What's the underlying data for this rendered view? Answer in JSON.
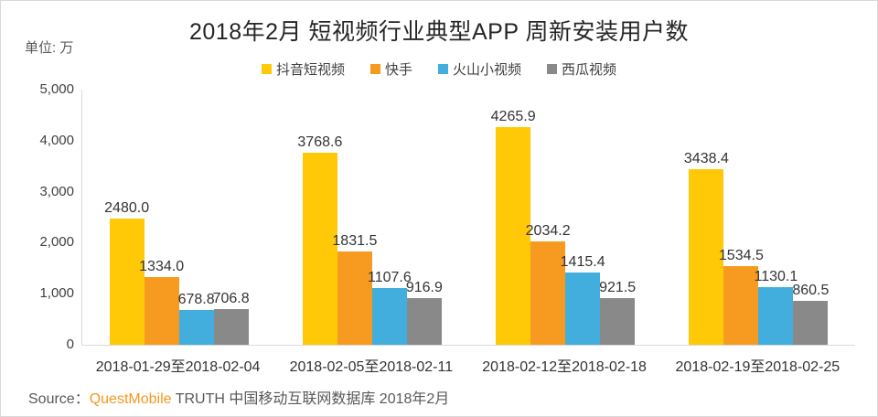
{
  "header": {
    "title": "2018年2月 短视频行业典型APP 周新安装用户数",
    "unit_label": "单位: 万"
  },
  "chart_data": {
    "type": "bar",
    "title": "2018年2月 短视频行业典型APP 周新安装用户数",
    "unit": "单位: 万",
    "categories": [
      "2018-01-29至2018-02-04",
      "2018-02-05至2018-02-11",
      "2018-02-12至2018-02-18",
      "2018-02-19至2018-02-25"
    ],
    "series": [
      {
        "name": "抖音短视频",
        "color": "#FFC907",
        "values": [
          2480.0,
          3768.6,
          4265.9,
          3438.4
        ],
        "labels": [
          "2480.0",
          "3768.6",
          "4265.9",
          "3438.4"
        ]
      },
      {
        "name": "快手",
        "color": "#F79A20",
        "values": [
          1334.0,
          1831.5,
          2034.2,
          1534.5
        ],
        "labels": [
          "1334.0",
          "1831.5",
          "2034.2",
          "1534.5"
        ]
      },
      {
        "name": "火山小视频",
        "color": "#41AEDE",
        "values": [
          678.8,
          1107.6,
          1415.4,
          1130.1
        ],
        "labels": [
          "678.8",
          "1107.6",
          "1415.4",
          "1130.1"
        ]
      },
      {
        "name": "西瓜视频",
        "color": "#898989",
        "values": [
          706.8,
          916.9,
          921.5,
          860.5
        ],
        "labels": [
          "706.8",
          "916.9",
          "921.5",
          "860.5"
        ]
      }
    ],
    "ylim": [
      0,
      5000
    ],
    "yticks": [
      {
        "value": 0,
        "label": "0"
      },
      {
        "value": 1000,
        "label": "1,000"
      },
      {
        "value": 2000,
        "label": "2,000"
      },
      {
        "value": 3000,
        "label": "3,000"
      },
      {
        "value": 4000,
        "label": "4,000"
      },
      {
        "value": 5000,
        "label": "5,000"
      }
    ],
    "legend_position": "top-center",
    "grid": false,
    "xlabel": "",
    "ylabel": "单位: 万"
  },
  "footer": {
    "source_prefix": "Source：",
    "source_brand": "QuestMobile",
    "source_rest": " TRUTH 中国移动互联网数据库 2018年2月"
  }
}
